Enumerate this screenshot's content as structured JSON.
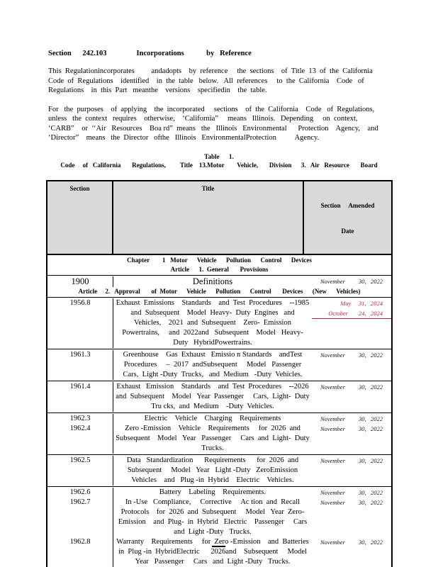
{
  "colors": {
    "header_bg": "#d9d9d9",
    "date_red": "#b02b47",
    "date_dark": "#14141e"
  },
  "document": {
    "heading": "Section      242.103                Incorporations            by   Reference",
    "para1_lines": [
      "This  Regulationincorporates         andadopts    by  reference     the  sections    of  Title  13  of  the  California",
      "Code  of  Regulations    identified    in  the  table   below.   All  references     to  the  California    Code   of",
      "Regulations    in  this  Part   meanthe    versions    specifiedin    the  table."
    ],
    "para2_lines": [
      "For   the  purposes    of  applying    the  incorporated     sections    of  the  California    Code   of  Regulations,",
      "unless   the  context   requires    otherwise,    ‘California”     means   Illinois.   Depending     on  context,",
      "‘CARB”    or  ‘‘Air   Resources    Boa rd”  means   the   Illinois   Environmental      Protection    Agency,    and",
      "‘Director”    means   the  Director   ofthe   Illinois   EnvironmentalProtection          Agency."
    ],
    "caption_lines": [
      "Table      1.",
      "Code     of   California       Regulations,         Title    13.Motor        Vehicle,       Division      3.   Air   Resource       Board"
    ]
  },
  "table": {
    "header": {
      "col_section": "Section",
      "col_title": "Title",
      "col_amended_line1": "Section     Amended",
      "col_amended_line2": "Date"
    },
    "groups": [
      {
        "entries": [
          {
            "kind": "span",
            "lines": [
              "Chapter        1   Motor      Vehicle      Pollution      Control      Devices",
              "Article      1.  General       Provisions"
            ]
          }
        ]
      },
      {
        "entries": [
          {
            "kind": "item",
            "large": true,
            "section": "1900",
            "title_lines": [
              "Definitions"
            ],
            "dates": [
              {
                "text": "November         30,   2022"
              }
            ]
          },
          {
            "kind": "span",
            "lines": [
              "Article     2.   Approval       of  Motor      Vehicle      Pollution      Control       Devices      (New      Vehicles)"
            ]
          }
        ]
      },
      {
        "entries": [
          {
            "kind": "item",
            "section": "1956.8",
            "title_lines": [
              "Exhaust  Emissions    Standards    and  Test  Procedures    --1985",
              "and  Subsequent    Model  Heavy-  Duty  Engines   and",
              "Vehicles,    2021  and  Subsequent    Zero-  Emission",
              "Powertrains,     and  2022and   Subsequent    Model   Heavy-",
              "Duty   HybridPowertrains."
            ],
            "dates": [
              {
                "text": "May     31,   2024",
                "color": "red"
              },
              {
                "text": "October       24,   2024",
                "color": "red",
                "underline": true
              }
            ]
          }
        ]
      },
      {
        "entries": [
          {
            "kind": "item",
            "section": "1961.3",
            "title_lines": [
              "Greenhouse    Gas  Exhaust   Emissio n Standards    andTest",
              "Procedures     –  2017  andSubsequent     Model   Passenger",
              "Cars,  Light -Duty  Trucks,   and  Medium   -Duty  Vehicles."
            ],
            "dates": [
              {
                "text": "November         30,   2022"
              }
            ]
          }
        ]
      },
      {
        "entries": [
          {
            "kind": "item",
            "section": "1961.4",
            "title_lines": [
              "Exhaust   Emission    Standards    and  Test  Procedures    --2026",
              "and  Subsequent    Model   Year  Passenger     Cars,  Light-  Duty",
              "Tru cks,  and  Medium    -Duty  Vehicles."
            ],
            "dates": [
              {
                "text": "November         30,   2022"
              }
            ]
          }
        ]
      },
      {
        "entries": [
          {
            "kind": "item",
            "section": "1962.3",
            "title_lines": [
              "Electric    Vehicle    Charging    Requirements"
            ],
            "dates": [
              {
                "text": "November         30,   2022"
              }
            ]
          },
          {
            "kind": "item",
            "section": "1962.4",
            "title_lines": [
              "Zero -Emission    Vehicle    Requirements     for  2026  and",
              "Subsequent    Model   Year   Passenger     Cars  and  Light-  Duty",
              "Trucks."
            ],
            "dates": [
              {
                "text": "November         30,   2022"
              }
            ]
          }
        ]
      },
      {
        "entries": [
          {
            "kind": "item",
            "section": "1962.5",
            "title_lines": [
              "Data   Standardization      Requirements      for  2026  and",
              "Subsequent     Model   Year   Light -Duty   ZeroEmission",
              "Vehicles    and   Plug -in  Hybrid    Electric    Vehicles."
            ],
            "dates": [
              {
                "text": "November         30,   2022"
              }
            ]
          }
        ]
      },
      {
        "entries": [
          {
            "kind": "item",
            "section": "1962.6",
            "title_lines": [
              "Battery    Labeling    Requirements."
            ],
            "dates": [
              {
                "text": "November         30,   2022"
              }
            ]
          },
          {
            "kind": "item",
            "section": "1962.7",
            "title_lines": [
              "In -Use   Compliance,     Corrective     Ac tion  and  Recall",
              "Protocols    for  2026  and  Subsequent     Model   Year  Zero-",
              "Emission    and  Plug-  in  Hybrid   Electric    Passenger     Cars",
              "and  Light -Duty   Trucks."
            ],
            "dates": [
              {
                "text": "November         30,   2022"
              }
            ]
          },
          {
            "kind": "item",
            "section": "1962.8",
            "title_lines": [
              "Warranty    Requirements     for  Zero -Emission    and  Batteries",
              "in  Plug -in  HybridElectric      2026and    Subsequent     Model",
              "Year   Passenger     Cars   and  Light -Duty   Trucks."
            ],
            "dates": [
              {
                "text": "November         30,   2022"
              }
            ]
          }
        ]
      }
    ]
  }
}
